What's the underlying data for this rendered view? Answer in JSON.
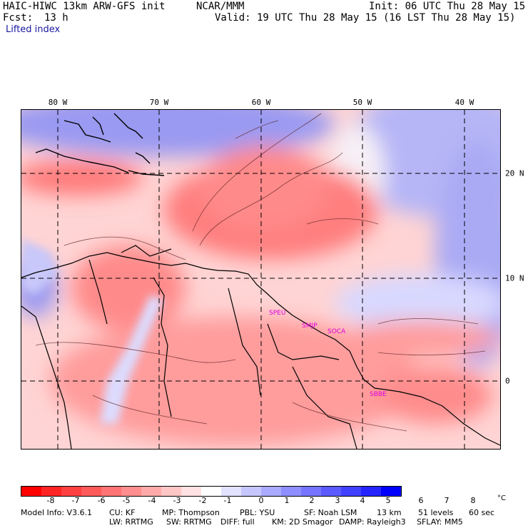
{
  "header": {
    "model": "HAIC-HIWC 13km ARW-GFS init",
    "org": "NCAR/MMM",
    "init": "Init: 06 UTC Thu 28 May 15",
    "fcst_label": "Fcst:",
    "fcst_value": "13 h",
    "valid": "Valid: 19 UTC Thu 28 May 15 (16 LST Thu 28 May 15)",
    "field": "Lifted index"
  },
  "map": {
    "lon_labels": [
      "80 W",
      "70 W",
      "60 W",
      "50 W",
      "40 W"
    ],
    "lat_labels": [
      "20 N",
      "10 N",
      "0"
    ],
    "stations": [
      "SPEU",
      "SMJP",
      "SOCA",
      "SBBE"
    ]
  },
  "colorbar": {
    "ticks": [
      "-8",
      "-7",
      "-6",
      "-5",
      "-4",
      "-3",
      "-2",
      "-1",
      "0",
      "1",
      "2",
      "3",
      "4",
      "5",
      "6",
      "7",
      "8"
    ],
    "unit": "°C",
    "colors": [
      "#ff0000",
      "#ff2424",
      "#ff4040",
      "#ff5a5a",
      "#ff7474",
      "#ff8e8e",
      "#ffaaaa",
      "#ffc6c6",
      "#ffe2e2",
      "#ffffff",
      "#e2e2ff",
      "#c6c6ff",
      "#aaaaff",
      "#8e8eff",
      "#7474ff",
      "#5a5aff",
      "#4040ff",
      "#2424ff",
      "#0000ff"
    ]
  },
  "footer": {
    "line1": [
      "Model Info: V3.6.1",
      "CU: KF",
      "MP: Thompson",
      "PBL: YSU",
      "SF: Noah LSM",
      "13 km",
      "51 levels",
      "60 sec"
    ],
    "line2": [
      "LW: RRTMG",
      "SW: RRTMG",
      "DIFF: full",
      "KM: 2D Smagor",
      "DAMP: Rayleigh3",
      "SFLAY: MM5"
    ]
  }
}
